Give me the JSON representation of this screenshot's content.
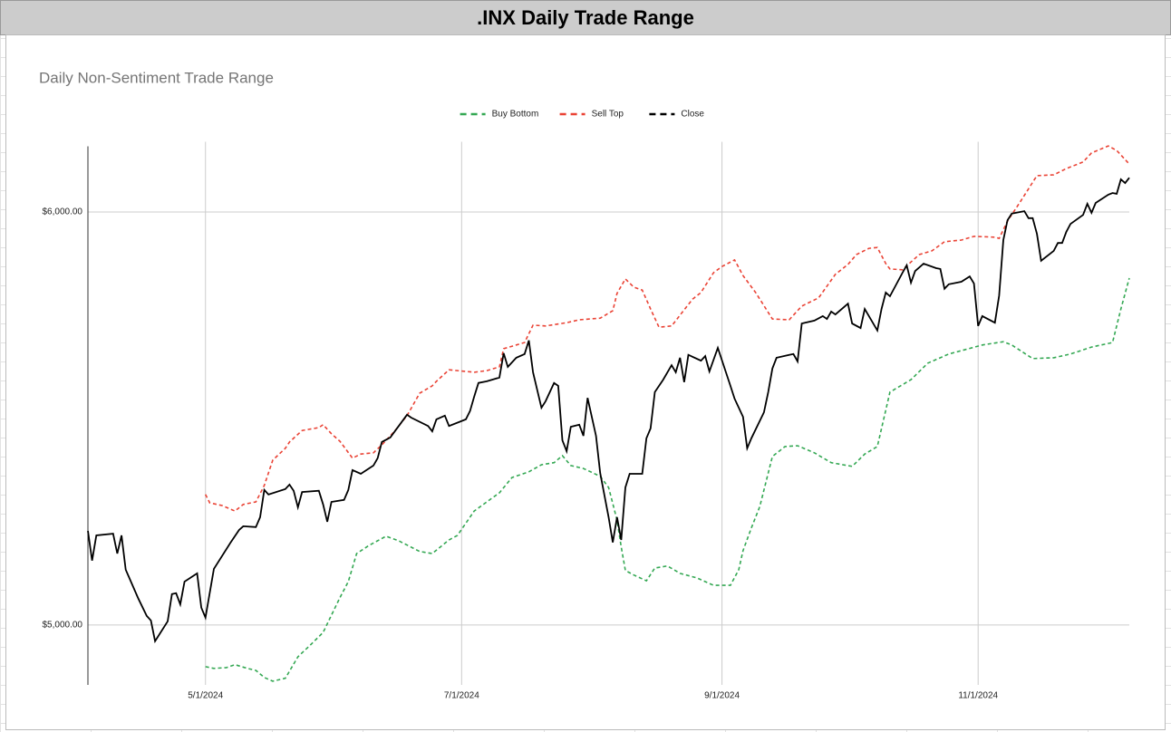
{
  "header": {
    "title": ".INX Daily Trade Range"
  },
  "chart_data": {
    "type": "line",
    "title": "Daily Non-Sentiment Trade Range",
    "legend": "top",
    "grid": true,
    "xlim": [
      "2024-04-03",
      "2024-12-07"
    ],
    "xticks": [
      {
        "value": "2024-05-01",
        "label": "5/1/2024"
      },
      {
        "value": "2024-07-01",
        "label": "7/1/2024"
      },
      {
        "value": "2024-09-01",
        "label": "9/1/2024"
      },
      {
        "value": "2024-11-01",
        "label": "11/1/2024"
      }
    ],
    "ylim": [
      4855,
      6170
    ],
    "yticks": [
      {
        "value": 5000,
        "label": "$5,000.00"
      },
      {
        "value": 6000,
        "label": "$6,000.00"
      }
    ],
    "series": [
      {
        "name": "Buy Bottom",
        "color": "#34a853",
        "line_style": "dashed",
        "x": [
          "2024-05-01",
          "2024-05-03",
          "2024-05-06",
          "2024-05-08",
          "2024-05-11",
          "2024-05-13",
          "2024-05-15",
          "2024-05-17",
          "2024-05-20",
          "2024-05-23",
          "2024-05-26",
          "2024-05-29",
          "2024-05-31",
          "2024-06-02",
          "2024-06-04",
          "2024-06-06",
          "2024-06-09",
          "2024-06-13",
          "2024-06-16",
          "2024-06-21",
          "2024-06-24",
          "2024-06-28",
          "2024-06-30",
          "2024-07-04",
          "2024-07-07",
          "2024-07-10",
          "2024-07-13",
          "2024-07-17",
          "2024-07-20",
          "2024-07-23",
          "2024-07-25",
          "2024-07-27",
          "2024-07-30",
          "2024-08-03",
          "2024-08-05",
          "2024-08-07",
          "2024-08-08",
          "2024-08-09",
          "2024-08-11",
          "2024-08-14",
          "2024-08-16",
          "2024-08-19",
          "2024-08-22",
          "2024-08-26",
          "2024-08-30",
          "2024-09-03",
          "2024-09-05",
          "2024-09-06",
          "2024-09-08",
          "2024-09-10",
          "2024-09-13",
          "2024-09-16",
          "2024-09-19",
          "2024-09-23",
          "2024-09-27",
          "2024-10-02",
          "2024-10-05",
          "2024-10-08",
          "2024-10-11",
          "2024-10-16",
          "2024-10-20",
          "2024-10-25",
          "2024-10-29",
          "2024-11-02",
          "2024-11-07",
          "2024-11-09",
          "2024-11-14",
          "2024-11-19",
          "2024-11-23",
          "2024-11-28",
          "2024-12-03",
          "2024-12-05",
          "2024-12-07"
        ],
        "values": [
          4899,
          4895,
          4897,
          4904,
          4895,
          4890,
          4873,
          4864,
          4871,
          4923,
          4952,
          4982,
          5024,
          5066,
          5105,
          5173,
          5193,
          5215,
          5204,
          5178,
          5173,
          5206,
          5217,
          5276,
          5298,
          5320,
          5357,
          5371,
          5388,
          5393,
          5410,
          5386,
          5379,
          5360,
          5333,
          5254,
          5189,
          5132,
          5121,
          5107,
          5138,
          5143,
          5125,
          5114,
          5096,
          5096,
          5134,
          5180,
          5235,
          5287,
          5408,
          5432,
          5434,
          5417,
          5393,
          5384,
          5414,
          5432,
          5564,
          5594,
          5634,
          5656,
          5667,
          5678,
          5686,
          5678,
          5645,
          5647,
          5656,
          5673,
          5684,
          5765,
          5840
        ]
      },
      {
        "name": "Sell Top",
        "color": "#ea4335",
        "line_style": "dashed",
        "x": [
          "2024-05-01",
          "2024-05-02",
          "2024-05-05",
          "2024-05-08",
          "2024-05-10",
          "2024-05-13",
          "2024-05-15",
          "2024-05-17",
          "2024-05-20",
          "2024-05-21",
          "2024-05-24",
          "2024-05-28",
          "2024-05-29",
          "2024-05-31",
          "2024-06-02",
          "2024-06-05",
          "2024-06-07",
          "2024-06-10",
          "2024-06-12",
          "2024-06-15",
          "2024-06-18",
          "2024-06-21",
          "2024-06-24",
          "2024-06-25",
          "2024-06-28",
          "2024-07-02",
          "2024-07-04",
          "2024-07-07",
          "2024-07-10",
          "2024-07-11",
          "2024-07-14",
          "2024-07-16",
          "2024-07-18",
          "2024-07-21",
          "2024-07-26",
          "2024-07-29",
          "2024-08-03",
          "2024-08-06",
          "2024-08-07",
          "2024-08-09",
          "2024-08-11",
          "2024-08-13",
          "2024-08-15",
          "2024-08-17",
          "2024-08-20",
          "2024-08-23",
          "2024-08-25",
          "2024-08-27",
          "2024-08-30",
          "2024-09-01",
          "2024-09-04",
          "2024-09-06",
          "2024-09-09",
          "2024-09-13",
          "2024-09-17",
          "2024-09-20",
          "2024-09-24",
          "2024-09-28",
          "2024-10-01",
          "2024-10-03",
          "2024-10-06",
          "2024-10-08",
          "2024-10-10",
          "2024-10-11",
          "2024-10-14",
          "2024-10-16",
          "2024-10-18",
          "2024-10-21",
          "2024-10-24",
          "2024-10-28",
          "2024-10-31",
          "2024-11-05",
          "2024-11-06",
          "2024-11-08",
          "2024-11-11",
          "2024-11-14",
          "2024-11-15",
          "2024-11-19",
          "2024-11-22",
          "2024-11-26",
          "2024-11-28",
          "2024-12-02",
          "2024-12-04",
          "2024-12-07"
        ],
        "values": [
          5316,
          5296,
          5289,
          5276,
          5292,
          5298,
          5338,
          5399,
          5428,
          5443,
          5471,
          5478,
          5485,
          5463,
          5445,
          5404,
          5414,
          5417,
          5436,
          5469,
          5507,
          5561,
          5579,
          5590,
          5618,
          5614,
          5612,
          5616,
          5625,
          5669,
          5678,
          5684,
          5726,
          5724,
          5732,
          5739,
          5743,
          5761,
          5803,
          5838,
          5818,
          5811,
          5765,
          5721,
          5724,
          5763,
          5789,
          5805,
          5853,
          5868,
          5884,
          5846,
          5805,
          5741,
          5739,
          5772,
          5792,
          5849,
          5873,
          5897,
          5912,
          5914,
          5875,
          5862,
          5860,
          5879,
          5897,
          5906,
          5928,
          5932,
          5941,
          5939,
          5936,
          5978,
          6024,
          6072,
          6088,
          6090,
          6105,
          6121,
          6143,
          6160,
          6149,
          6116
        ]
      },
      {
        "name": "Close",
        "color": "#000000",
        "line_style": "solid",
        "x": [
          "2024-04-03",
          "2024-04-04",
          "2024-04-05",
          "2024-04-09",
          "2024-04-10",
          "2024-04-11",
          "2024-04-12",
          "2024-04-15",
          "2024-04-17",
          "2024-04-18",
          "2024-04-19",
          "2024-04-22",
          "2024-04-23",
          "2024-04-24",
          "2024-04-25",
          "2024-04-26",
          "2024-04-29",
          "2024-04-30",
          "2024-05-01",
          "2024-05-03",
          "2024-05-07",
          "2024-05-09",
          "2024-05-10",
          "2024-05-13",
          "2024-05-14",
          "2024-05-15",
          "2024-05-16",
          "2024-05-20",
          "2024-05-21",
          "2024-05-22",
          "2024-05-23",
          "2024-05-24",
          "2024-05-28",
          "2024-05-29",
          "2024-05-30",
          "2024-05-31",
          "2024-06-03",
          "2024-06-04",
          "2024-06-05",
          "2024-06-07",
          "2024-06-10",
          "2024-06-11",
          "2024-06-12",
          "2024-06-14",
          "2024-06-18",
          "2024-06-19",
          "2024-06-23",
          "2024-06-24",
          "2024-06-25",
          "2024-06-27",
          "2024-06-28",
          "2024-07-02",
          "2024-07-03",
          "2024-07-04",
          "2024-07-05",
          "2024-07-07",
          "2024-07-10",
          "2024-07-11",
          "2024-07-12",
          "2024-07-14",
          "2024-07-16",
          "2024-07-17",
          "2024-07-18",
          "2024-07-20",
          "2024-07-21",
          "2024-07-23",
          "2024-07-24",
          "2024-07-25",
          "2024-07-26",
          "2024-07-27",
          "2024-07-29",
          "2024-07-30",
          "2024-07-31",
          "2024-08-02",
          "2024-08-03",
          "2024-08-05",
          "2024-08-06",
          "2024-08-07",
          "2024-08-08",
          "2024-08-09",
          "2024-08-10",
          "2024-08-13",
          "2024-08-14",
          "2024-08-15",
          "2024-08-16",
          "2024-08-18",
          "2024-08-20",
          "2024-08-21",
          "2024-08-22",
          "2024-08-23",
          "2024-08-24",
          "2024-08-27",
          "2024-08-28",
          "2024-08-29",
          "2024-08-31",
          "2024-09-03",
          "2024-09-04",
          "2024-09-06",
          "2024-09-07",
          "2024-09-08",
          "2024-09-11",
          "2024-09-12",
          "2024-09-13",
          "2024-09-14",
          "2024-09-17",
          "2024-09-18",
          "2024-09-19",
          "2024-09-20",
          "2024-09-23",
          "2024-09-25",
          "2024-09-26",
          "2024-09-27",
          "2024-09-28",
          "2024-10-01",
          "2024-10-02",
          "2024-10-04",
          "2024-10-05",
          "2024-10-08",
          "2024-10-09",
          "2024-10-10",
          "2024-10-11",
          "2024-10-14",
          "2024-10-15",
          "2024-10-16",
          "2024-10-17",
          "2024-10-19",
          "2024-10-22",
          "2024-10-23",
          "2024-10-24",
          "2024-10-25",
          "2024-10-28",
          "2024-10-30",
          "2024-10-31",
          "2024-11-01",
          "2024-11-02",
          "2024-11-05",
          "2024-11-06",
          "2024-11-07",
          "2024-11-08",
          "2024-11-09",
          "2024-11-11",
          "2024-11-12",
          "2024-11-13",
          "2024-11-14",
          "2024-11-15",
          "2024-11-16",
          "2024-11-19",
          "2024-11-20",
          "2024-11-21",
          "2024-11-22",
          "2024-11-23",
          "2024-11-26",
          "2024-11-27",
          "2024-11-28",
          "2024-11-29",
          "2024-12-02",
          "2024-12-03",
          "2024-12-04",
          "2024-12-05",
          "2024-12-06",
          "2024-12-07"
        ],
        "values": [
          5228,
          5156,
          5217,
          5221,
          5173,
          5217,
          5134,
          5064,
          5022,
          5011,
          4961,
          5009,
          5075,
          5077,
          5050,
          5105,
          5125,
          5042,
          5018,
          5136,
          5200,
          5230,
          5239,
          5237,
          5261,
          5327,
          5316,
          5329,
          5340,
          5325,
          5285,
          5322,
          5325,
          5292,
          5250,
          5298,
          5303,
          5327,
          5375,
          5366,
          5386,
          5404,
          5443,
          5454,
          5509,
          5502,
          5482,
          5469,
          5498,
          5507,
          5482,
          5498,
          5518,
          5553,
          5586,
          5590,
          5599,
          5658,
          5625,
          5647,
          5656,
          5689,
          5612,
          5526,
          5542,
          5586,
          5579,
          5447,
          5421,
          5480,
          5485,
          5458,
          5550,
          5458,
          5368,
          5261,
          5200,
          5261,
          5206,
          5333,
          5366,
          5366,
          5452,
          5476,
          5564,
          5594,
          5629,
          5612,
          5647,
          5588,
          5654,
          5640,
          5651,
          5614,
          5671,
          5579,
          5548,
          5504,
          5428,
          5452,
          5515,
          5564,
          5621,
          5647,
          5654,
          5656,
          5638,
          5730,
          5737,
          5748,
          5741,
          5759,
          5752,
          5778,
          5730,
          5719,
          5765,
          5713,
          5765,
          5805,
          5796,
          5853,
          5871,
          5829,
          5857,
          5875,
          5864,
          5862,
          5814,
          5825,
          5831,
          5844,
          5827,
          5724,
          5748,
          5732,
          5798,
          5932,
          5980,
          5996,
          6000,
          6002,
          5985,
          5985,
          5947,
          5882,
          5906,
          5925,
          5925,
          5952,
          5971,
          5993,
          6020,
          5998,
          6022,
          6042,
          6046,
          6044,
          6079,
          6070,
          6083
        ]
      }
    ]
  }
}
